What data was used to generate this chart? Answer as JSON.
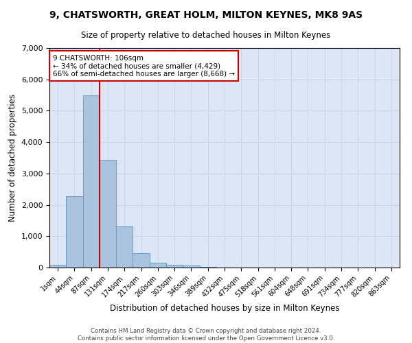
{
  "title": "9, CHATSWORTH, GREAT HOLM, MILTON KEYNES, MK8 9AS",
  "subtitle": "Size of property relative to detached houses in Milton Keynes",
  "xlabel": "Distribution of detached houses by size in Milton Keynes",
  "ylabel": "Number of detached properties",
  "footer_line1": "Contains HM Land Registry data © Crown copyright and database right 2024.",
  "footer_line2": "Contains public sector information licensed under the Open Government Licence v3.0.",
  "annotation_title": "9 CHATSWORTH: 106sqm",
  "annotation_line1": "← 34% of detached houses are smaller (4,429)",
  "annotation_line2": "66% of semi-detached houses are larger (8,668) →",
  "bar_color": "#aac4e0",
  "bar_edge_color": "#5a96c8",
  "annotation_box_edge": "#cc0000",
  "vline_color": "#cc0000",
  "grid_color": "#c8d4e8",
  "bg_color": "#dce6f5",
  "categories": [
    "1sqm",
    "44sqm",
    "87sqm",
    "131sqm",
    "174sqm",
    "217sqm",
    "260sqm",
    "303sqm",
    "346sqm",
    "389sqm",
    "432sqm",
    "475sqm",
    "518sqm",
    "561sqm",
    "604sqm",
    "648sqm",
    "691sqm",
    "734sqm",
    "777sqm",
    "820sqm",
    "863sqm"
  ],
  "values": [
    80,
    2270,
    5480,
    3430,
    1310,
    460,
    155,
    90,
    55,
    30,
    0,
    0,
    0,
    0,
    0,
    0,
    0,
    0,
    0,
    0,
    0
  ],
  "ylim": [
    0,
    7000
  ],
  "yticks": [
    0,
    1000,
    2000,
    3000,
    4000,
    5000,
    6000,
    7000
  ],
  "vline_x": 2.5
}
